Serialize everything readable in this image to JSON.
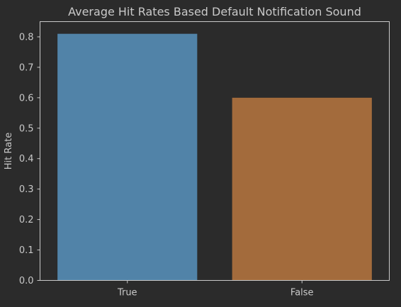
{
  "chart_data": {
    "type": "bar",
    "title": "Average Hit Rates Based Default Notification Sound",
    "xlabel": "",
    "ylabel": "Hit Rate",
    "categories": [
      "True",
      "False"
    ],
    "values": [
      0.81,
      0.6
    ],
    "ylim": [
      0,
      0.85
    ],
    "yticks": [
      "0.0",
      "0.1",
      "0.2",
      "0.3",
      "0.4",
      "0.5",
      "0.6",
      "0.7",
      "0.8"
    ],
    "grid": false,
    "legend": "none"
  },
  "colors": {
    "background": "#2b2b2b",
    "axes": "#c9c9c9",
    "text": "#c9c9c9",
    "bars": [
      "#5183a8",
      "#a36b3c"
    ]
  }
}
